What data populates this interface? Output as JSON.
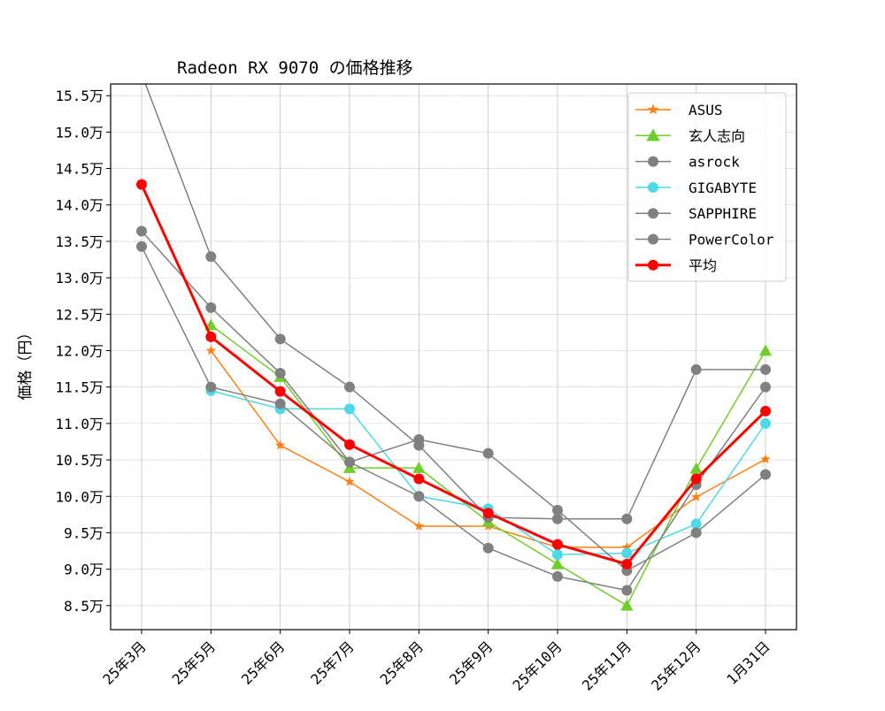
{
  "chart_data": {
    "type": "line",
    "title": "Radeon RX 9070 の価格推移",
    "xlabel": "",
    "ylabel": "価格（円）",
    "categories": [
      "25年3月",
      "25年5月",
      "25年6月",
      "25年7月",
      "25年8月",
      "25年9月",
      "25年10月",
      "25年11月",
      "25年12月",
      "1月31日"
    ],
    "y_ticks": [
      8.5,
      9.0,
      9.5,
      10.0,
      10.5,
      11.0,
      11.5,
      12.0,
      12.5,
      13.0,
      13.5,
      14.0,
      14.5,
      15.0,
      15.5
    ],
    "y_tick_suffix": "万",
    "ylim": [
      8.17,
      15.66
    ],
    "y_unit": "万円",
    "grid": true,
    "legend_position": "top-right",
    "series": [
      {
        "name": "ASUS",
        "color": "#ff7f0e",
        "marker": "star",
        "values": [
          null,
          12.0,
          10.7,
          10.2,
          9.59,
          9.59,
          9.3,
          9.3,
          9.99,
          10.51
        ]
      },
      {
        "name": "玄人志向",
        "color": "#6fcf2a",
        "marker": "triangle",
        "values": [
          null,
          12.35,
          11.64,
          10.39,
          10.39,
          9.65,
          9.07,
          8.5,
          10.38,
          12.0
        ]
      },
      {
        "name": "asrock",
        "color": "#808080",
        "marker": "circle",
        "values": [
          15.8,
          13.29,
          12.16,
          11.5,
          10.7,
          9.71,
          9.69,
          9.69,
          11.74,
          11.74
        ]
      },
      {
        "name": "GIGABYTE",
        "color": "#4dd9e8",
        "marker": "circle",
        "values": [
          null,
          11.45,
          11.2,
          11.2,
          10.0,
          9.83,
          9.2,
          9.22,
          9.62,
          11.0
        ]
      },
      {
        "name": "SAPPHIRE",
        "color": "#808080",
        "marker": "circle",
        "values": [
          13.64,
          12.59,
          11.69,
          10.47,
          10.0,
          9.29,
          8.9,
          8.71,
          10.16,
          11.5
        ]
      },
      {
        "name": "PowerColor",
        "color": "#808080",
        "marker": "circle",
        "values": [
          13.43,
          11.5,
          11.27,
          10.47,
          10.78,
          10.59,
          9.81,
          8.98,
          9.5,
          10.3
        ]
      },
      {
        "name": "平均",
        "color": "#ff0000",
        "marker": "circle",
        "bold": true,
        "values": [
          14.28,
          12.19,
          11.44,
          10.71,
          10.24,
          9.77,
          9.34,
          9.07,
          10.24,
          11.17
        ]
      }
    ]
  }
}
